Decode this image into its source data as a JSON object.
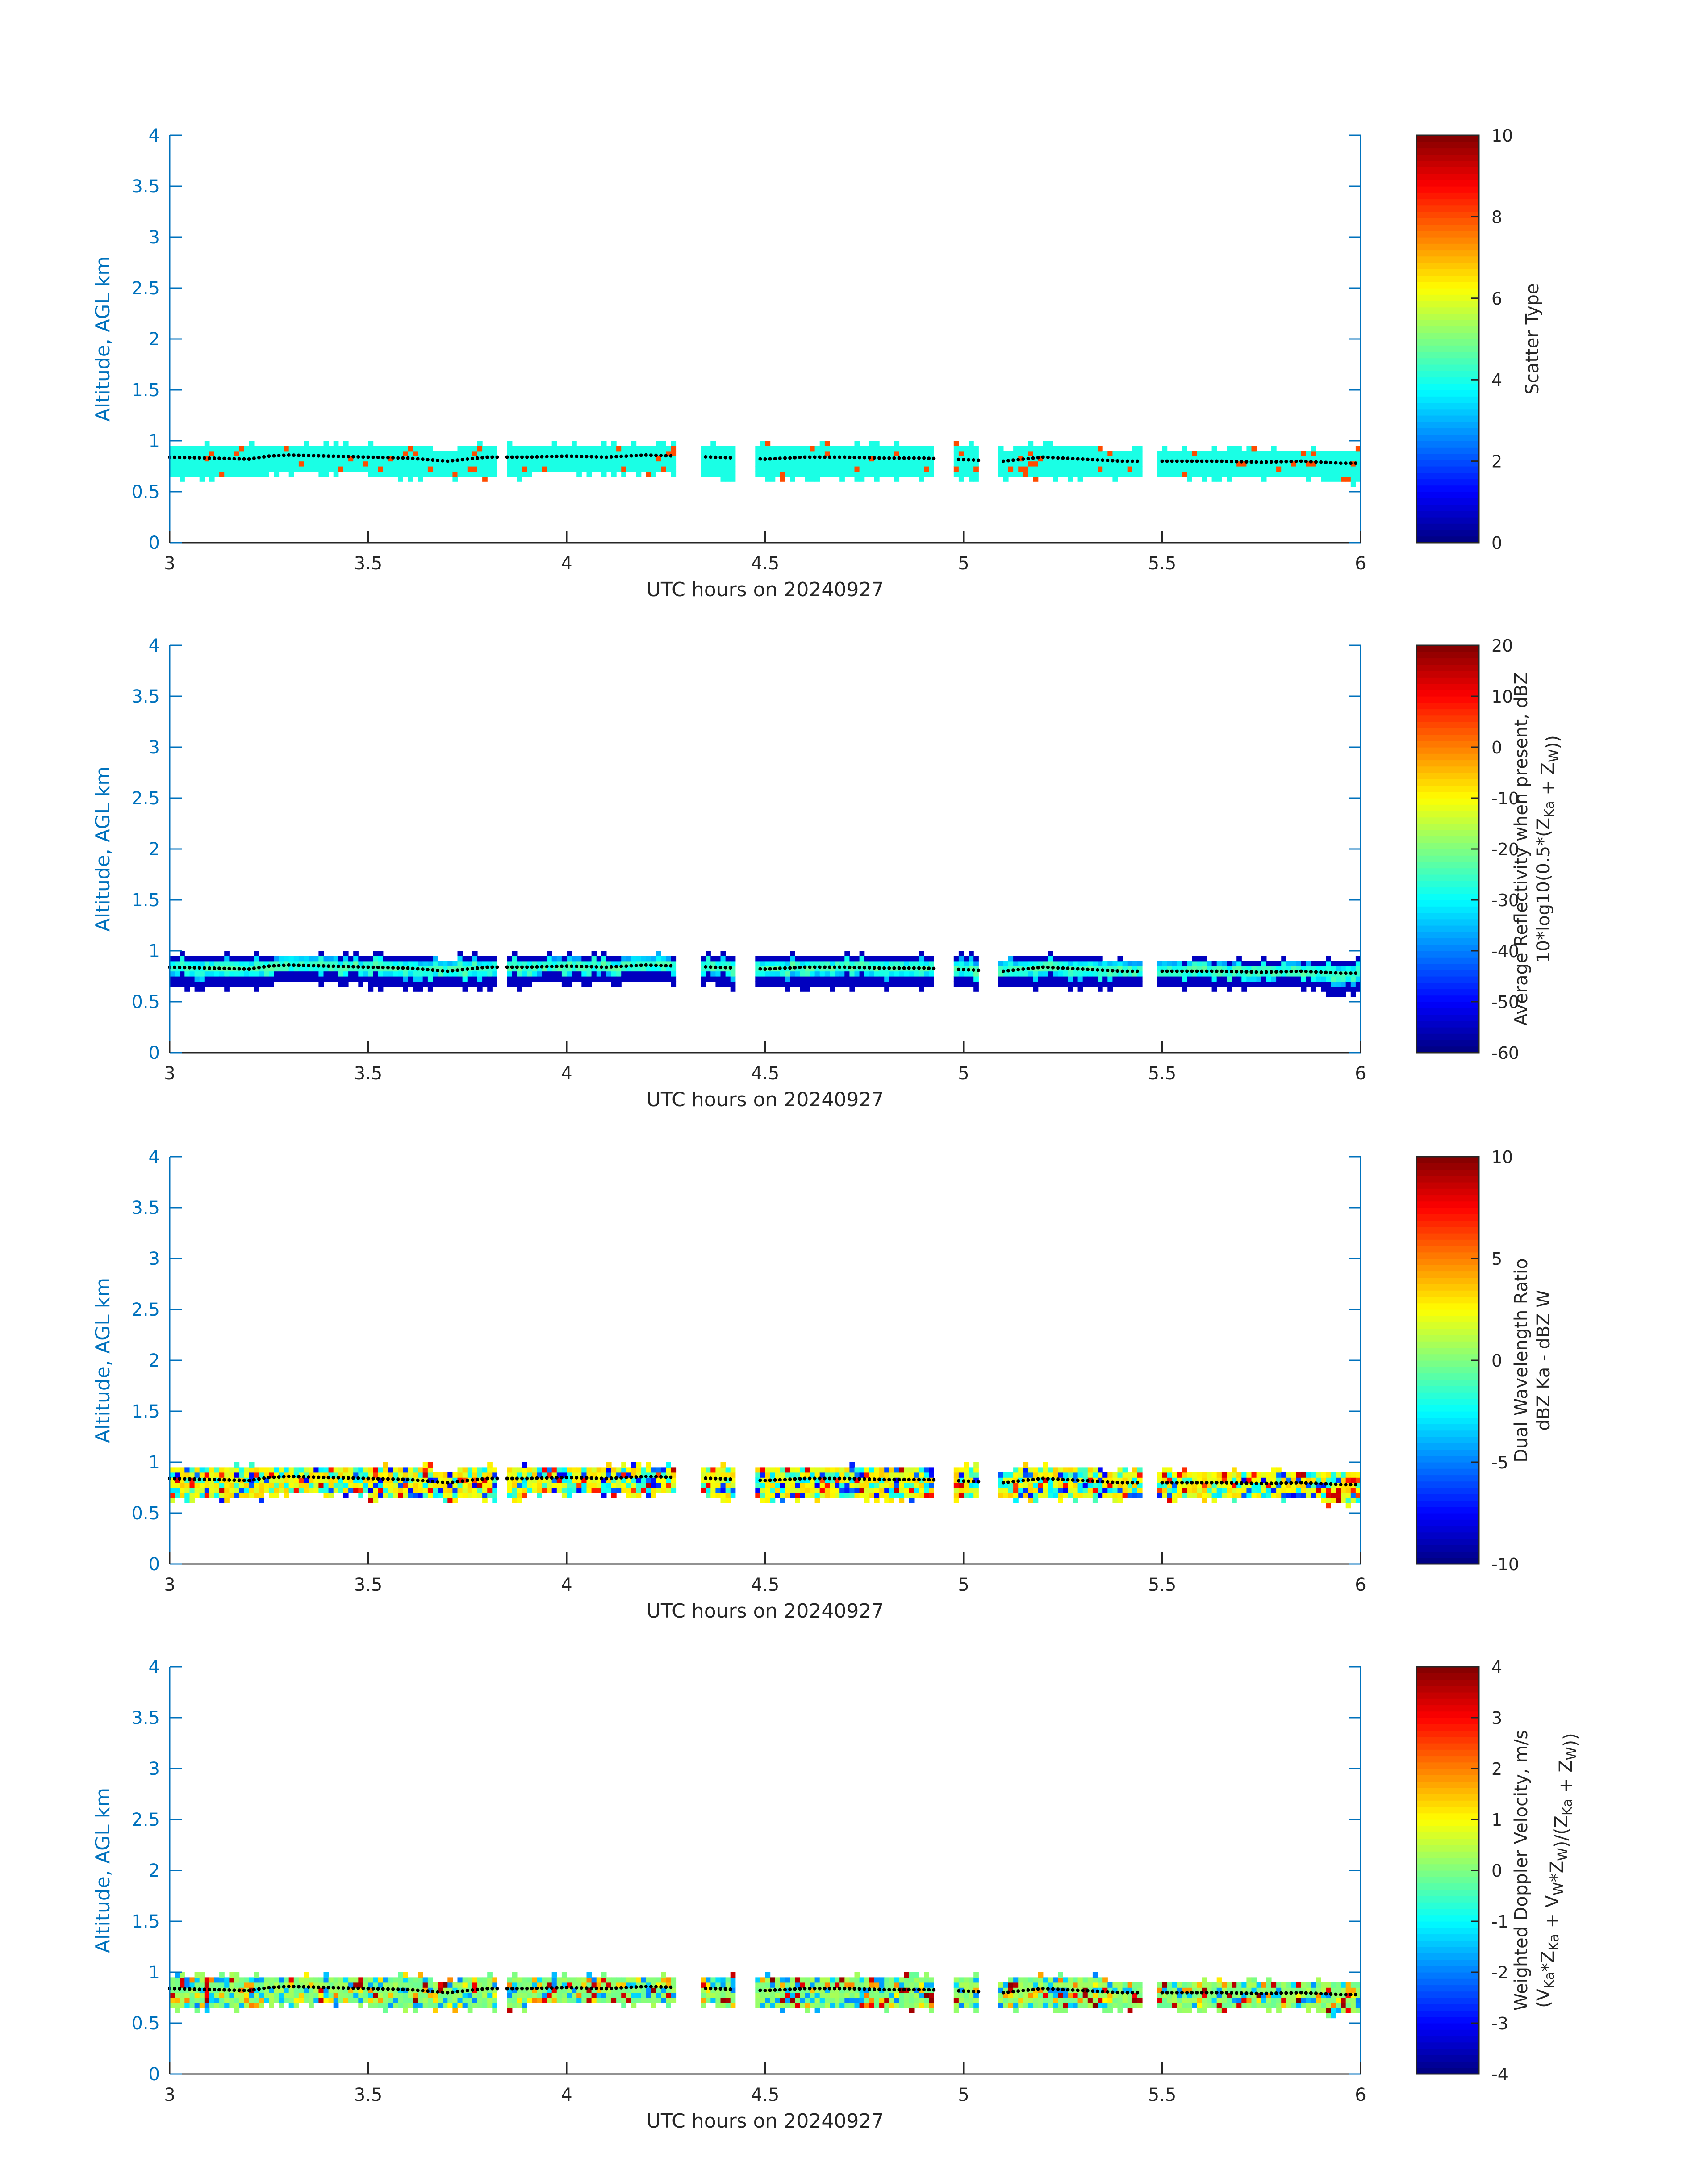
{
  "colors": {
    "axis": "#0072BD",
    "text": "#262626",
    "marker": "#000000"
  },
  "colormap": "jet",
  "chart_data": [
    {
      "type": "heatmap",
      "id": "scatter_type",
      "title": "",
      "xlabel": "UTC hours on 20240927",
      "ylabel": "Altitude, AGL km",
      "xlim": [
        3,
        6
      ],
      "ylim": [
        0,
        4
      ],
      "xticks": [
        "3",
        "3.5",
        "4",
        "4.5",
        "5",
        "5.5",
        "6"
      ],
      "yticks": [
        "0",
        "0.5",
        "1",
        "1.5",
        "2",
        "2.5",
        "3",
        "3.5",
        "4"
      ],
      "grid": false,
      "colorbar": {
        "label": "Scatter Type",
        "label2": "",
        "limits": [
          0,
          10
        ],
        "ticks": [
          "0",
          "2",
          "4",
          "6",
          "8",
          "10"
        ]
      },
      "pattern": "scatter",
      "cloud_base_km_approx": 0.7,
      "cloud_top_km_approx": 0.9
    },
    {
      "type": "heatmap",
      "id": "reflectivity",
      "title": "",
      "xlabel": "UTC hours on 20240927",
      "ylabel": "Altitude, AGL km",
      "xlim": [
        3,
        6
      ],
      "ylim": [
        0,
        4
      ],
      "xticks": [
        "3",
        "3.5",
        "4",
        "4.5",
        "5",
        "5.5",
        "6"
      ],
      "yticks": [
        "0",
        "0.5",
        "1",
        "1.5",
        "2",
        "2.5",
        "3",
        "3.5",
        "4"
      ],
      "grid": false,
      "colorbar": {
        "label": "Average Reflectivity when present, dBZ",
        "label2": "10*log10(0.5*(Z_Ka + Z_W))",
        "limits": [
          -60,
          20
        ],
        "ticks": [
          "-60",
          "-50",
          "-40",
          "-30",
          "-20",
          "-10",
          "0",
          "10",
          "20"
        ]
      },
      "pattern": "refl",
      "cloud_base_km_approx": 0.6,
      "cloud_top_km_approx": 1.0
    },
    {
      "type": "heatmap",
      "id": "dwr",
      "title": "",
      "xlabel": "UTC hours on 20240927",
      "ylabel": "Altitude, AGL km",
      "xlim": [
        3,
        6
      ],
      "ylim": [
        0,
        4
      ],
      "xticks": [
        "3",
        "3.5",
        "4",
        "4.5",
        "5",
        "5.5",
        "6"
      ],
      "yticks": [
        "0",
        "0.5",
        "1",
        "1.5",
        "2",
        "2.5",
        "3",
        "3.5",
        "4"
      ],
      "grid": false,
      "colorbar": {
        "label": "Dual Wavelength Ratio",
        "label2": "dBZ Ka - dBZ W",
        "limits": [
          -10,
          10
        ],
        "ticks": [
          "-10",
          "-5",
          "0",
          "5",
          "10"
        ]
      },
      "pattern": "dwr",
      "cloud_base_km_approx": 0.7,
      "cloud_top_km_approx": 1.0
    },
    {
      "type": "heatmap",
      "id": "doppler",
      "title": "",
      "xlabel": "UTC hours on 20240927",
      "ylabel": "Altitude, AGL km",
      "xlim": [
        3,
        6
      ],
      "ylim": [
        0,
        4
      ],
      "xticks": [
        "3",
        "3.5",
        "4",
        "4.5",
        "5",
        "5.5",
        "6"
      ],
      "yticks": [
        "0",
        "0.5",
        "1",
        "1.5",
        "2",
        "2.5",
        "3",
        "3.5",
        "4"
      ],
      "grid": false,
      "colorbar": {
        "label": "Weighted Doppler Velocity, m/s",
        "label2": "(V_Ka*Z_Ka + V_W*Z_W)/(Z_Ka + Z_W))",
        "limits": [
          -4,
          4
        ],
        "ticks": [
          "-4",
          "-3",
          "-2",
          "-1",
          "0",
          "1",
          "2",
          "3",
          "4"
        ]
      },
      "pattern": "doppler",
      "cloud_base_km_approx": 0.7,
      "cloud_top_km_approx": 1.0
    }
  ],
  "cloud_segments_utc": [
    [
      3.0,
      3.83
    ],
    [
      3.85,
      4.27
    ],
    [
      4.34,
      4.42
    ],
    [
      4.48,
      4.93
    ],
    [
      4.98,
      5.04
    ],
    [
      5.09,
      5.45
    ],
    [
      5.49,
      6.0
    ]
  ],
  "marker_line": {
    "x": [
      3.0,
      3.1,
      3.2,
      3.25,
      3.3,
      3.4,
      3.5,
      3.6,
      3.7,
      3.8,
      3.9,
      4.0,
      4.1,
      4.2,
      4.37,
      4.5,
      4.6,
      4.7,
      4.8,
      4.9,
      5.1,
      5.2,
      5.3,
      5.4,
      5.55,
      5.65,
      5.75,
      5.85,
      5.95,
      6.0
    ],
    "y": [
      0.84,
      0.83,
      0.82,
      0.85,
      0.86,
      0.85,
      0.84,
      0.83,
      0.8,
      0.84,
      0.84,
      0.85,
      0.84,
      0.86,
      0.84,
      0.82,
      0.84,
      0.84,
      0.83,
      0.83,
      0.8,
      0.84,
      0.82,
      0.8,
      0.8,
      0.8,
      0.79,
      0.8,
      0.78,
      0.78
    ]
  }
}
